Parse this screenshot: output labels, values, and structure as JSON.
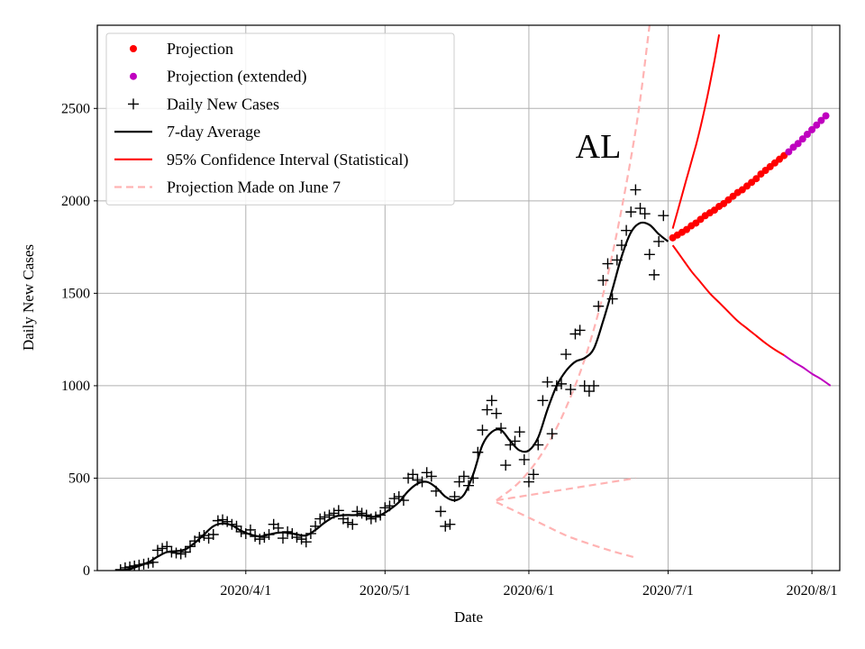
{
  "chart_data": {
    "type": "line",
    "state_label": "AL",
    "xlabel": "Date",
    "ylabel": "Daily New Cases",
    "xlim_day": [
      -1,
      159
    ],
    "ylim": [
      0,
      2950
    ],
    "x_axis_origin": "2020/3/1",
    "x_ticks": [
      {
        "day": 31,
        "label": "2020/4/1"
      },
      {
        "day": 61,
        "label": "2020/5/1"
      },
      {
        "day": 92,
        "label": "2020/6/1"
      },
      {
        "day": 122,
        "label": "2020/7/1"
      },
      {
        "day": 153,
        "label": "2020/8/1"
      }
    ],
    "y_ticks": [
      {
        "value": 0,
        "label": "0"
      },
      {
        "value": 500,
        "label": "500"
      },
      {
        "value": 1000,
        "label": "1000"
      },
      {
        "value": 1500,
        "label": "1500"
      },
      {
        "value": 2000,
        "label": "2000"
      },
      {
        "value": 2500,
        "label": "2500"
      }
    ],
    "grid": true,
    "legend_position": "top-left",
    "legend": [
      {
        "key": "projection",
        "label": "Projection",
        "marker": "dot",
        "color": "#ff0000"
      },
      {
        "key": "projection_ext",
        "label": "Projection (extended)",
        "marker": "dot",
        "color": "#bf00bf"
      },
      {
        "key": "daily",
        "label": "Daily New Cases",
        "marker": "plus",
        "color": "#000000"
      },
      {
        "key": "avg",
        "label": "7-day Average",
        "marker": "line",
        "color": "#000000"
      },
      {
        "key": "ci",
        "label": "95% Confidence Interval (Statistical)",
        "marker": "line",
        "color": "#ff0000"
      },
      {
        "key": "june7",
        "label": "Projection Made on June 7",
        "marker": "dash",
        "color": "#ffb3b3"
      }
    ],
    "colors": {
      "projection": "#ff0000",
      "projection_ext": "#bf00bf",
      "daily": "#000000",
      "avg": "#000000",
      "ci": "#ff0000",
      "ci_ext": "#bf00bf",
      "june7": "#ffb3b3",
      "grid": "#b0b0b0"
    },
    "series": {
      "daily_new_cases": [
        [
          4,
          5
        ],
        [
          5,
          15
        ],
        [
          6,
          20
        ],
        [
          7,
          25
        ],
        [
          8,
          30
        ],
        [
          9,
          35
        ],
        [
          10,
          40
        ],
        [
          11,
          45
        ],
        [
          12,
          110
        ],
        [
          13,
          120
        ],
        [
          14,
          130
        ],
        [
          15,
          100
        ],
        [
          16,
          95
        ],
        [
          17,
          90
        ],
        [
          18,
          100
        ],
        [
          19,
          130
        ],
        [
          20,
          160
        ],
        [
          21,
          180
        ],
        [
          22,
          190
        ],
        [
          23,
          175
        ],
        [
          24,
          195
        ],
        [
          25,
          270
        ],
        [
          26,
          275
        ],
        [
          27,
          265
        ],
        [
          28,
          250
        ],
        [
          29,
          240
        ],
        [
          30,
          210
        ],
        [
          31,
          200
        ],
        [
          32,
          220
        ],
        [
          33,
          185
        ],
        [
          34,
          170
        ],
        [
          35,
          180
        ],
        [
          36,
          195
        ],
        [
          37,
          250
        ],
        [
          38,
          230
        ],
        [
          39,
          175
        ],
        [
          40,
          210
        ],
        [
          41,
          200
        ],
        [
          42,
          180
        ],
        [
          43,
          170
        ],
        [
          44,
          155
        ],
        [
          45,
          200
        ],
        [
          46,
          240
        ],
        [
          47,
          280
        ],
        [
          48,
          290
        ],
        [
          49,
          300
        ],
        [
          50,
          310
        ],
        [
          51,
          325
        ],
        [
          52,
          280
        ],
        [
          53,
          260
        ],
        [
          54,
          250
        ],
        [
          55,
          320
        ],
        [
          56,
          310
        ],
        [
          57,
          300
        ],
        [
          58,
          280
        ],
        [
          59,
          290
        ],
        [
          60,
          300
        ],
        [
          61,
          340
        ],
        [
          62,
          350
        ],
        [
          63,
          390
        ],
        [
          64,
          400
        ],
        [
          65,
          380
        ],
        [
          66,
          500
        ],
        [
          67,
          520
        ],
        [
          68,
          490
        ],
        [
          69,
          480
        ],
        [
          70,
          530
        ],
        [
          71,
          510
        ],
        [
          72,
          430
        ],
        [
          73,
          320
        ],
        [
          74,
          240
        ],
        [
          75,
          250
        ],
        [
          76,
          400
        ],
        [
          77,
          480
        ],
        [
          78,
          510
        ],
        [
          79,
          460
        ],
        [
          80,
          500
        ],
        [
          81,
          640
        ],
        [
          82,
          760
        ],
        [
          83,
          870
        ],
        [
          84,
          920
        ],
        [
          85,
          850
        ],
        [
          86,
          770
        ],
        [
          87,
          570
        ],
        [
          88,
          680
        ],
        [
          89,
          700
        ],
        [
          90,
          750
        ],
        [
          91,
          600
        ],
        [
          92,
          480
        ],
        [
          93,
          520
        ],
        [
          94,
          680
        ],
        [
          95,
          920
        ],
        [
          96,
          1020
        ],
        [
          97,
          740
        ],
        [
          98,
          1000
        ],
        [
          99,
          1010
        ],
        [
          100,
          1170
        ],
        [
          101,
          980
        ],
        [
          102,
          1280
        ],
        [
          103,
          1300
        ],
        [
          104,
          1000
        ],
        [
          105,
          970
        ],
        [
          106,
          1000
        ],
        [
          107,
          1430
        ],
        [
          108,
          1570
        ],
        [
          109,
          1660
        ],
        [
          110,
          1470
        ],
        [
          111,
          1680
        ],
        [
          112,
          1760
        ],
        [
          113,
          1840
        ],
        [
          114,
          1940
        ],
        [
          115,
          2060
        ],
        [
          116,
          1960
        ],
        [
          117,
          1930
        ],
        [
          118,
          1710
        ],
        [
          119,
          1600
        ],
        [
          120,
          1780
        ],
        [
          121,
          1920
        ]
      ],
      "seven_day_average": [
        [
          4,
          0
        ],
        [
          6,
          8
        ],
        [
          8,
          25
        ],
        [
          10,
          45
        ],
        [
          12,
          75
        ],
        [
          14,
          100
        ],
        [
          16,
          105
        ],
        [
          18,
          115
        ],
        [
          20,
          150
        ],
        [
          22,
          195
        ],
        [
          24,
          240
        ],
        [
          26,
          255
        ],
        [
          28,
          245
        ],
        [
          30,
          215
        ],
        [
          32,
          195
        ],
        [
          34,
          185
        ],
        [
          36,
          195
        ],
        [
          38,
          205
        ],
        [
          40,
          205
        ],
        [
          42,
          195
        ],
        [
          44,
          190
        ],
        [
          46,
          220
        ],
        [
          48,
          260
        ],
        [
          50,
          290
        ],
        [
          52,
          300
        ],
        [
          54,
          300
        ],
        [
          56,
          300
        ],
        [
          58,
          290
        ],
        [
          60,
          300
        ],
        [
          62,
          330
        ],
        [
          64,
          370
        ],
        [
          66,
          430
        ],
        [
          68,
          470
        ],
        [
          70,
          480
        ],
        [
          72,
          450
        ],
        [
          74,
          400
        ],
        [
          76,
          380
        ],
        [
          78,
          410
        ],
        [
          80,
          520
        ],
        [
          82,
          680
        ],
        [
          84,
          750
        ],
        [
          86,
          760
        ],
        [
          88,
          700
        ],
        [
          90,
          650
        ],
        [
          92,
          650
        ],
        [
          94,
          720
        ],
        [
          96,
          870
        ],
        [
          98,
          1000
        ],
        [
          100,
          1080
        ],
        [
          102,
          1130
        ],
        [
          104,
          1150
        ],
        [
          106,
          1200
        ],
        [
          108,
          1350
        ],
        [
          110,
          1520
        ],
        [
          112,
          1700
        ],
        [
          114,
          1830
        ],
        [
          116,
          1880
        ],
        [
          118,
          1870
        ],
        [
          120,
          1820
        ],
        [
          122,
          1780
        ]
      ],
      "projection": [
        [
          123,
          1800
        ],
        [
          124,
          1815
        ],
        [
          125,
          1830
        ],
        [
          126,
          1845
        ],
        [
          127,
          1865
        ],
        [
          128,
          1880
        ],
        [
          129,
          1900
        ],
        [
          130,
          1920
        ],
        [
          131,
          1935
        ],
        [
          132,
          1950
        ],
        [
          133,
          1970
        ],
        [
          134,
          1985
        ],
        [
          135,
          2005
        ],
        [
          136,
          2025
        ],
        [
          137,
          2045
        ],
        [
          138,
          2060
        ],
        [
          139,
          2080
        ],
        [
          140,
          2100
        ],
        [
          141,
          2120
        ],
        [
          142,
          2145
        ],
        [
          143,
          2165
        ],
        [
          144,
          2185
        ],
        [
          145,
          2205
        ],
        [
          146,
          2225
        ],
        [
          147,
          2245
        ]
      ],
      "projection_extended": [
        [
          148,
          2265
        ],
        [
          149,
          2290
        ],
        [
          150,
          2310
        ],
        [
          151,
          2335
        ],
        [
          152,
          2360
        ],
        [
          153,
          2385
        ],
        [
          154,
          2410
        ],
        [
          155,
          2435
        ],
        [
          156,
          2460
        ]
      ],
      "ci_upper": [
        [
          123,
          1850
        ],
        [
          124,
          1940
        ],
        [
          125,
          2030
        ],
        [
          126,
          2120
        ],
        [
          127,
          2210
        ],
        [
          128,
          2300
        ],
        [
          129,
          2400
        ],
        [
          130,
          2510
        ],
        [
          131,
          2630
        ],
        [
          132,
          2760
        ],
        [
          133,
          2900
        ]
      ],
      "ci_lower": [
        [
          123,
          1760
        ],
        [
          125,
          1690
        ],
        [
          127,
          1620
        ],
        [
          129,
          1560
        ],
        [
          131,
          1500
        ],
        [
          133,
          1450
        ],
        [
          135,
          1400
        ],
        [
          137,
          1350
        ],
        [
          139,
          1310
        ],
        [
          141,
          1270
        ],
        [
          143,
          1230
        ],
        [
          145,
          1195
        ],
        [
          147,
          1165
        ]
      ],
      "ci_lower_extended": [
        [
          147,
          1165
        ],
        [
          149,
          1130
        ],
        [
          151,
          1100
        ],
        [
          153,
          1065
        ],
        [
          155,
          1035
        ],
        [
          157,
          1000
        ]
      ],
      "june7_upper": [
        [
          85,
          380
        ],
        [
          90,
          480
        ],
        [
          95,
          640
        ],
        [
          100,
          880
        ],
        [
          105,
          1220
        ],
        [
          110,
          1710
        ],
        [
          115,
          2380
        ],
        [
          118,
          2950
        ]
      ],
      "june7_mid": [
        [
          85,
          380
        ],
        [
          90,
          400
        ],
        [
          95,
          420
        ],
        [
          100,
          440
        ],
        [
          105,
          460
        ],
        [
          110,
          480
        ],
        [
          115,
          500
        ]
      ],
      "june7_lower": [
        [
          85,
          370
        ],
        [
          90,
          310
        ],
        [
          95,
          250
        ],
        [
          100,
          190
        ],
        [
          105,
          145
        ],
        [
          110,
          105
        ],
        [
          115,
          70
        ]
      ]
    }
  }
}
